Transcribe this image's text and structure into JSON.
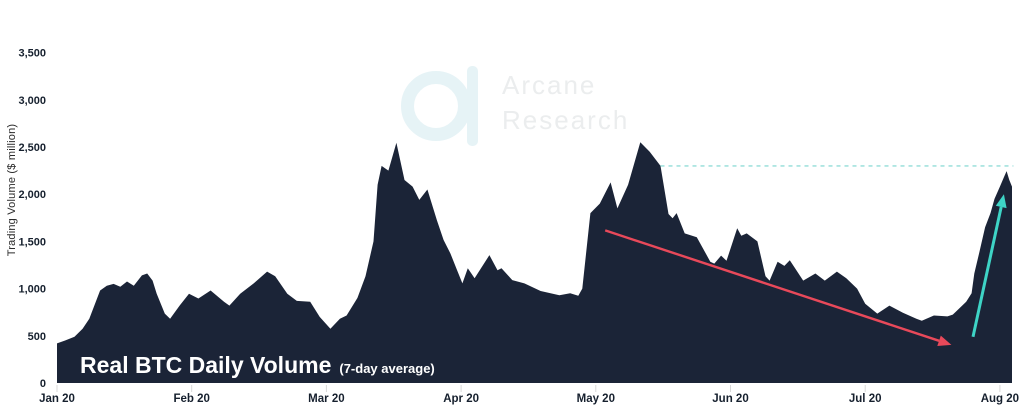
{
  "watermark": {
    "line1": "Arcane",
    "line2": "Research"
  },
  "chart_data": {
    "type": "area",
    "title": "Real BTC Daily Volume",
    "subtitle": "(7-day average)",
    "ylabel": "Trading Volume ($ million)",
    "x_axis": "Dates from Jan 20 2020 to Aug 20 2020 (t = months after Jan 20)",
    "x_tick_labels": [
      "Jan 20",
      "Feb 20",
      "Mar 20",
      "Apr 20",
      "May 20",
      "Jun 20",
      "Jul 20",
      "Aug 20"
    ],
    "x_tick_t": [
      0,
      1,
      2,
      3,
      4,
      5,
      6,
      7
    ],
    "y_ticks": [
      0,
      500,
      1000,
      1500,
      2000,
      2500,
      3000,
      3500
    ],
    "y_tick_labels": [
      "0",
      "500",
      "1,000",
      "1,500",
      "2,000",
      "2,500",
      "3,000",
      "3,500"
    ],
    "ylim": [
      0,
      3500
    ],
    "grid": "off",
    "legend": "none",
    "series": [
      {
        "name": "Real BTC daily volume, 7-day average ($ million)",
        "points": [
          [
            0.0,
            420
          ],
          [
            0.06,
            450
          ],
          [
            0.13,
            490
          ],
          [
            0.19,
            575
          ],
          [
            0.24,
            680
          ],
          [
            0.32,
            980
          ],
          [
            0.37,
            1030
          ],
          [
            0.42,
            1050
          ],
          [
            0.47,
            1020
          ],
          [
            0.52,
            1075
          ],
          [
            0.57,
            1030
          ],
          [
            0.63,
            1140
          ],
          [
            0.67,
            1160
          ],
          [
            0.71,
            1085
          ],
          [
            0.74,
            945
          ],
          [
            0.8,
            735
          ],
          [
            0.84,
            680
          ],
          [
            0.91,
            820
          ],
          [
            0.98,
            945
          ],
          [
            1.05,
            895
          ],
          [
            1.14,
            980
          ],
          [
            1.24,
            860
          ],
          [
            1.28,
            820
          ],
          [
            1.36,
            945
          ],
          [
            1.46,
            1055
          ],
          [
            1.56,
            1180
          ],
          [
            1.62,
            1130
          ],
          [
            1.71,
            945
          ],
          [
            1.78,
            870
          ],
          [
            1.88,
            860
          ],
          [
            1.95,
            700
          ],
          [
            2.03,
            575
          ],
          [
            2.1,
            680
          ],
          [
            2.15,
            715
          ],
          [
            2.23,
            900
          ],
          [
            2.29,
            1130
          ],
          [
            2.35,
            1500
          ],
          [
            2.38,
            2100
          ],
          [
            2.41,
            2300
          ],
          [
            2.46,
            2250
          ],
          [
            2.52,
            2545
          ],
          [
            2.58,
            2150
          ],
          [
            2.64,
            2080
          ],
          [
            2.69,
            1940
          ],
          [
            2.75,
            2050
          ],
          [
            2.82,
            1725
          ],
          [
            2.87,
            1515
          ],
          [
            2.92,
            1375
          ],
          [
            2.97,
            1195
          ],
          [
            3.01,
            1055
          ],
          [
            3.05,
            1215
          ],
          [
            3.1,
            1110
          ],
          [
            3.21,
            1355
          ],
          [
            3.27,
            1195
          ],
          [
            3.3,
            1215
          ],
          [
            3.38,
            1090
          ],
          [
            3.47,
            1055
          ],
          [
            3.59,
            975
          ],
          [
            3.73,
            930
          ],
          [
            3.81,
            950
          ],
          [
            3.87,
            925
          ],
          [
            3.9,
            1000
          ],
          [
            3.96,
            1800
          ],
          [
            4.03,
            1900
          ],
          [
            4.11,
            2125
          ],
          [
            4.16,
            1850
          ],
          [
            4.24,
            2100
          ],
          [
            4.33,
            2550
          ],
          [
            4.4,
            2450
          ],
          [
            4.48,
            2300
          ],
          [
            4.54,
            1790
          ],
          [
            4.57,
            1745
          ],
          [
            4.6,
            1800
          ],
          [
            4.66,
            1585
          ],
          [
            4.75,
            1545
          ],
          [
            4.85,
            1285
          ],
          [
            4.88,
            1265
          ],
          [
            4.93,
            1350
          ],
          [
            4.97,
            1295
          ],
          [
            5.05,
            1640
          ],
          [
            5.08,
            1560
          ],
          [
            5.12,
            1585
          ],
          [
            5.2,
            1500
          ],
          [
            5.26,
            1130
          ],
          [
            5.29,
            1085
          ],
          [
            5.35,
            1285
          ],
          [
            5.4,
            1240
          ],
          [
            5.44,
            1300
          ],
          [
            5.54,
            1085
          ],
          [
            5.63,
            1160
          ],
          [
            5.7,
            1085
          ],
          [
            5.79,
            1180
          ],
          [
            5.86,
            1110
          ],
          [
            5.94,
            1000
          ],
          [
            6.0,
            840
          ],
          [
            6.09,
            735
          ],
          [
            6.18,
            820
          ],
          [
            6.28,
            745
          ],
          [
            6.38,
            680
          ],
          [
            6.42,
            660
          ],
          [
            6.51,
            715
          ],
          [
            6.61,
            705
          ],
          [
            6.65,
            725
          ],
          [
            6.75,
            860
          ],
          [
            6.79,
            950
          ],
          [
            6.81,
            1160
          ],
          [
            6.85,
            1400
          ],
          [
            6.89,
            1650
          ],
          [
            6.93,
            1800
          ],
          [
            6.96,
            1950
          ],
          [
            7.0,
            2080
          ],
          [
            7.03,
            2180
          ],
          [
            7.05,
            2245
          ],
          [
            7.07,
            2150
          ],
          [
            7.09,
            2080
          ]
        ]
      }
    ],
    "annotations": {
      "dashed_level_line": {
        "value": 2300,
        "t_start": 4.48,
        "t_end": 7.1
      },
      "down_arrow": {
        "from": [
          4.07,
          1617
        ],
        "to": [
          6.64,
          404
        ]
      },
      "up_arrow": {
        "from": [
          6.8,
          489
        ],
        "to": [
          7.03,
          2000
        ]
      }
    },
    "colors": {
      "area_fill": "#1b2437",
      "axis_text": "#16202e",
      "axis_tick": "#d8d8d8",
      "dashed_line": "#a3e2de",
      "down_arrow": "#e8495a",
      "up_arrow": "#3ed4c6",
      "watermark_logo": "#e6f3f6",
      "watermark_text": "#ebedee",
      "title_text": "#ffffff"
    }
  }
}
